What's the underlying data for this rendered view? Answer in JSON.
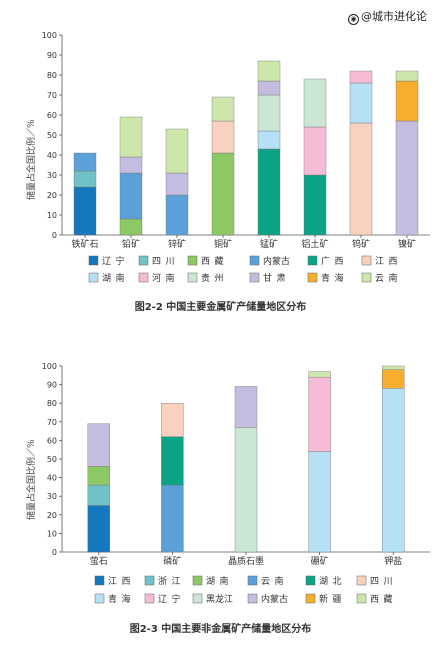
{
  "watermark": "@城市进化论",
  "chart_data": [
    {
      "type": "bar",
      "stacked": true,
      "caption": "图2-2   中国主要金属矿产储量地区分布",
      "ylabel": "储量占全国比例／%",
      "ylim": [
        0,
        100
      ],
      "yticks": [
        0,
        10,
        20,
        30,
        40,
        50,
        60,
        70,
        80,
        90,
        100
      ],
      "grid": false,
      "legend_position": "bottom",
      "categories": [
        "铁矿石",
        "铅矿",
        "锌矿",
        "铜矿",
        "锰矿",
        "铝土矿",
        "钨矿",
        "镍矿"
      ],
      "legend": [
        {
          "name": "辽宁",
          "color": "#1577be"
        },
        {
          "name": "四川",
          "color": "#6fc3c6"
        },
        {
          "name": "西藏",
          "color": "#8cc864"
        },
        {
          "name": "内蒙古",
          "color": "#5ca0d9"
        },
        {
          "name": "广西",
          "color": "#0aa383"
        },
        {
          "name": "江西",
          "color": "#f8d1bf"
        },
        {
          "name": "湖南",
          "color": "#b5e0f5"
        },
        {
          "name": "河南",
          "color": "#f6bcd6"
        },
        {
          "name": "贵州",
          "color": "#cbe6d5"
        },
        {
          "name": "甘肃",
          "color": "#c4bde0"
        },
        {
          "name": "青海",
          "color": "#f7ae2e"
        },
        {
          "name": "云南",
          "color": "#cde6ac"
        }
      ],
      "stacks": [
        [
          {
            "series": "辽宁",
            "value": 24
          },
          {
            "series": "四川",
            "value": 8
          },
          {
            "series": "内蒙古",
            "value": 9
          }
        ],
        [
          {
            "series": "西藏",
            "value": 8
          },
          {
            "series": "内蒙古",
            "value": 23
          },
          {
            "series": "甘肃",
            "value": 8
          },
          {
            "series": "云南",
            "value": 20
          }
        ],
        [
          {
            "series": "内蒙古",
            "value": 20
          },
          {
            "series": "甘肃",
            "value": 11
          },
          {
            "series": "云南",
            "value": 22
          }
        ],
        [
          {
            "series": "西藏",
            "value": 41
          },
          {
            "series": "江西",
            "value": 16
          },
          {
            "series": "云南",
            "value": 12
          }
        ],
        [
          {
            "series": "广西",
            "value": 43
          },
          {
            "series": "湖南",
            "value": 9
          },
          {
            "series": "贵州",
            "value": 18
          },
          {
            "series": "甘肃",
            "value": 7
          },
          {
            "series": "云南",
            "value": 10
          }
        ],
        [
          {
            "series": "广西",
            "value": 30
          },
          {
            "series": "河南",
            "value": 24
          },
          {
            "series": "贵州",
            "value": 24
          }
        ],
        [
          {
            "series": "江西",
            "value": 56
          },
          {
            "series": "湖南",
            "value": 20
          },
          {
            "series": "河南",
            "value": 6
          }
        ],
        [
          {
            "series": "甘肃",
            "value": 57
          },
          {
            "series": "青海",
            "value": 20
          },
          {
            "series": "云南",
            "value": 5
          }
        ]
      ]
    },
    {
      "type": "bar",
      "stacked": true,
      "caption": "图2-3   中国主要非金属矿产储量地区分布",
      "ylabel": "储量占全国比例／%",
      "ylim": [
        0,
        100
      ],
      "yticks": [
        0,
        10,
        20,
        30,
        40,
        50,
        60,
        70,
        80,
        90,
        100
      ],
      "grid": false,
      "legend_position": "bottom",
      "categories": [
        "萤石",
        "磷矿",
        "晶质石墨",
        "硼矿",
        "钾盐"
      ],
      "legend": [
        {
          "name": "江西",
          "color": "#1577be"
        },
        {
          "name": "浙江",
          "color": "#6fc3c6"
        },
        {
          "name": "湖南",
          "color": "#8cc864"
        },
        {
          "name": "云南",
          "color": "#5ca0d9"
        },
        {
          "name": "湖北",
          "color": "#0aa383"
        },
        {
          "name": "四川",
          "color": "#f8d1bf"
        },
        {
          "name": "青海",
          "color": "#b5e0f5"
        },
        {
          "name": "辽宁",
          "color": "#f6bcd6"
        },
        {
          "name": "黑龙江",
          "color": "#cbe6d5"
        },
        {
          "name": "内蒙古",
          "color": "#c4bde0"
        },
        {
          "name": "新疆",
          "color": "#f7ae2e"
        },
        {
          "name": "西藏",
          "color": "#cde6ac"
        }
      ],
      "stacks": [
        [
          {
            "series": "江西",
            "value": 25
          },
          {
            "series": "浙江",
            "value": 11
          },
          {
            "series": "湖南",
            "value": 10
          },
          {
            "series": "内蒙古",
            "value": 23
          }
        ],
        [
          {
            "series": "云南",
            "value": 36
          },
          {
            "series": "湖北",
            "value": 26
          },
          {
            "series": "四川",
            "value": 18
          }
        ],
        [
          {
            "series": "黑龙江",
            "value": 67
          },
          {
            "series": "内蒙古",
            "value": 22
          }
        ],
        [
          {
            "series": "青海",
            "value": 54
          },
          {
            "series": "辽宁",
            "value": 40
          },
          {
            "series": "西藏",
            "value": 3
          }
        ],
        [
          {
            "series": "青海",
            "value": 88
          },
          {
            "series": "新疆",
            "value": 10
          },
          {
            "series": "西藏",
            "value": 2
          }
        ]
      ]
    }
  ]
}
